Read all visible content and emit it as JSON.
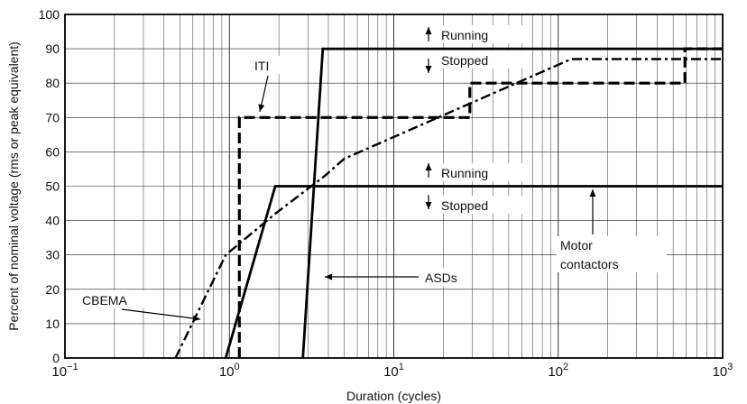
{
  "chart_data": {
    "type": "line",
    "xlabel": "Duration (cycles)",
    "ylabel": "Percent of nominal voltage (rms or peak equivalent)",
    "x_scale": "log",
    "xlim": [
      0.1,
      1000
    ],
    "ylim": [
      0,
      100
    ],
    "x_ticks": [
      {
        "value": 0.1,
        "base": "10",
        "exp": "−1"
      },
      {
        "value": 1,
        "base": "10",
        "exp": "0"
      },
      {
        "value": 10,
        "base": "10",
        "exp": "1"
      },
      {
        "value": 100,
        "base": "10",
        "exp": "2"
      },
      {
        "value": 1000,
        "base": "10",
        "exp": "3"
      }
    ],
    "y_ticks": [
      0,
      10,
      20,
      30,
      40,
      50,
      60,
      70,
      80,
      90,
      100
    ],
    "grid": true,
    "series": [
      {
        "name": "ITI",
        "style": "dashed-thick",
        "points": [
          [
            1.15,
            0
          ],
          [
            1.15,
            70
          ],
          [
            29,
            70
          ],
          [
            29,
            80
          ],
          [
            590,
            80
          ],
          [
            590,
            90
          ],
          [
            1000,
            90
          ]
        ]
      },
      {
        "name": "CBEMA",
        "style": "dash-dot",
        "points": [
          [
            0.47,
            0
          ],
          [
            0.95,
            30
          ],
          [
            1.9,
            42
          ],
          [
            3.8,
            53
          ],
          [
            5,
            58
          ],
          [
            120,
            87
          ],
          [
            1000,
            87
          ]
        ]
      },
      {
        "name": "ASDs",
        "style": "solid-thick",
        "points": [
          [
            2.8,
            0
          ],
          [
            3.7,
            90
          ],
          [
            1000,
            90
          ]
        ]
      },
      {
        "name": "",
        "style": "solid-thick",
        "points": [
          [
            0.95,
            0
          ],
          [
            1.9,
            50
          ],
          [
            1000,
            50
          ]
        ]
      }
    ],
    "annotations": [
      {
        "id": "iti",
        "text": "ITI"
      },
      {
        "id": "cbema",
        "text": "CBEMA"
      },
      {
        "id": "asds",
        "text": "ASDs"
      },
      {
        "id": "motor1",
        "text": "Motor"
      },
      {
        "id": "motor2",
        "text": "contactors"
      },
      {
        "id": "run_upper",
        "text": "Running"
      },
      {
        "id": "stop_upper",
        "text": "Stopped"
      },
      {
        "id": "run_lower",
        "text": "Running"
      },
      {
        "id": "stop_lower",
        "text": "Stopped"
      }
    ]
  }
}
